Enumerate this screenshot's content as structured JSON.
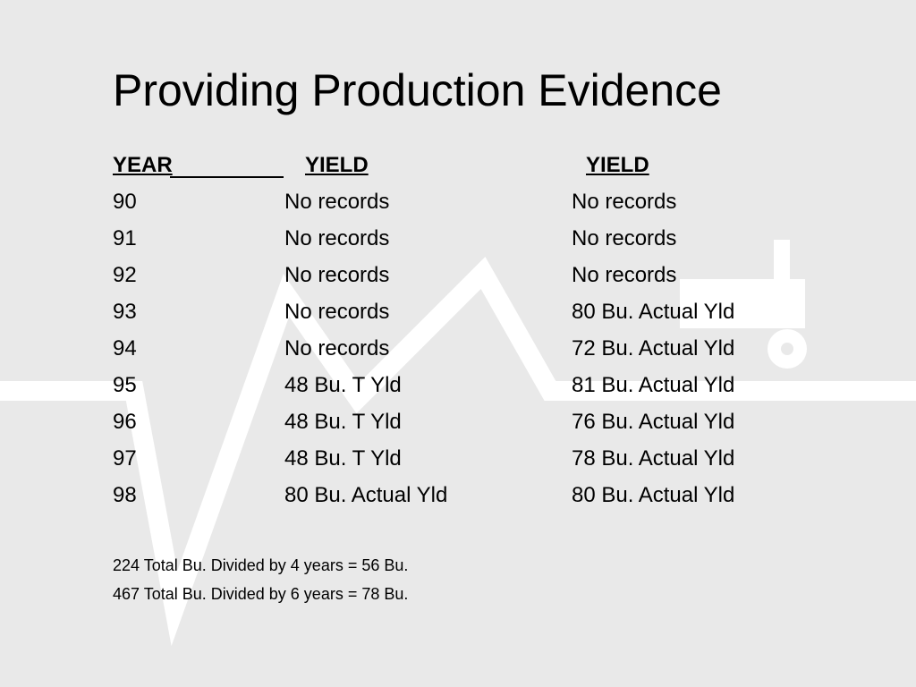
{
  "title": "Providing Production Evidence",
  "table": {
    "header": [
      "YEAR",
      "YIELD",
      "YIELD"
    ],
    "rows": [
      [
        "90",
        "No records",
        "No records"
      ],
      [
        "91",
        "No records",
        "No records"
      ],
      [
        "92",
        "No records",
        "No records"
      ],
      [
        "93",
        "No records",
        "80 Bu. Actual Yld"
      ],
      [
        "94",
        "No records",
        "72 Bu. Actual Yld"
      ],
      [
        "95",
        "48 Bu. T Yld",
        "81 Bu. Actual Yld"
      ],
      [
        "96",
        "48 Bu. T Yld",
        "76 Bu. Actual Yld"
      ],
      [
        "97",
        "48 Bu. T Yld",
        "78 Bu. Actual Yld"
      ],
      [
        "98",
        "80 Bu. Actual Yld",
        "80 Bu. Actual Yld"
      ]
    ]
  },
  "notes": [
    "224 Total Bu. Divided by 4 years = 56 Bu.",
    "467 Total Bu. Divided by 6 years = 78 Bu."
  ]
}
